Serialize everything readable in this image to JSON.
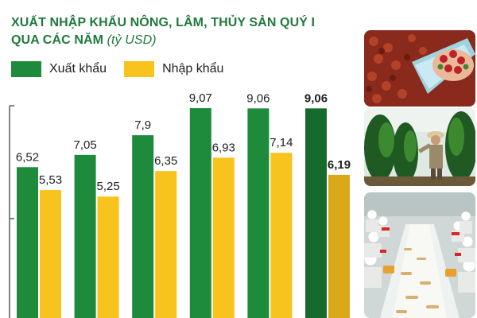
{
  "title": {
    "line1": "XUẤT NHẬP KHẨU NÔNG, LÂM, THỦY SẢN QUÝ I",
    "line2": "QUA CÁC NĂM",
    "unit": "(tỷ USD)"
  },
  "legend": {
    "export_label": "Xuất khẩu",
    "import_label": "Nhập khẩu"
  },
  "colors": {
    "export": "#1e8a3c",
    "import": "#f7c31c",
    "export_highlight": "#176a2e",
    "import_highlight": "#d9a91a",
    "title": "#1f7a3c"
  },
  "chart_data": {
    "type": "bar",
    "title": "XUẤT NHẬP KHẨU NÔNG, LÂM, THỦY SẢN QUÝ I QUA CÁC NĂM (tỷ USD)",
    "categories": [
      "",
      "",
      "",
      "",
      "",
      ""
    ],
    "series": [
      {
        "name": "Xuất khẩu",
        "values": [
          6.52,
          7.05,
          7.9,
          9.07,
          9.06,
          9.06
        ],
        "labels": [
          "6,52",
          "7,05",
          "7,9",
          "9,07",
          "9,06",
          "9,06"
        ]
      },
      {
        "name": "Nhập khẩu",
        "values": [
          5.53,
          5.25,
          6.35,
          6.93,
          7.14,
          6.19
        ],
        "labels": [
          "5,53",
          "5,25",
          "6,35",
          "6,93",
          "7,14",
          "6,19"
        ]
      }
    ],
    "highlight_index": 5,
    "grid": false,
    "legend_position": "top-left"
  },
  "photos": [
    {
      "icon": "coffee-beans-photo"
    },
    {
      "icon": "pepper-farmer-photo"
    },
    {
      "icon": "seafood-factory-photo"
    }
  ]
}
